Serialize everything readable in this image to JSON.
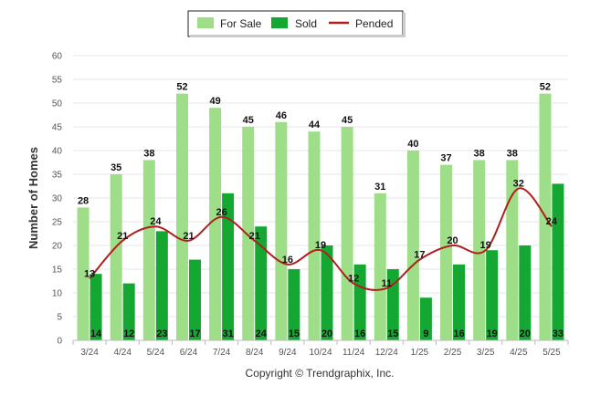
{
  "chart_data": {
    "type": "bar",
    "categories": [
      "3/24",
      "4/24",
      "5/24",
      "6/24",
      "7/24",
      "8/24",
      "9/24",
      "10/24",
      "11/24",
      "12/24",
      "1/25",
      "2/25",
      "3/25",
      "4/25",
      "5/25"
    ],
    "series": [
      {
        "name": "For Sale",
        "kind": "bar",
        "color": "#9EDE88",
        "values": [
          28,
          35,
          38,
          52,
          49,
          45,
          46,
          44,
          45,
          31,
          40,
          37,
          38,
          38,
          52
        ]
      },
      {
        "name": "Sold",
        "kind": "bar",
        "color": "#14A833",
        "values": [
          14,
          12,
          23,
          17,
          31,
          24,
          15,
          20,
          16,
          15,
          9,
          16,
          19,
          20,
          33
        ]
      },
      {
        "name": "Pended",
        "kind": "line",
        "color": "#B01E1E",
        "values": [
          13,
          21,
          24,
          21,
          26,
          21,
          16,
          19,
          12,
          11,
          17,
          20,
          19,
          32,
          24
        ]
      }
    ],
    "ylabel": "Number of Homes",
    "xlabel": "",
    "ylim": [
      0,
      60
    ],
    "yticks": [
      0,
      5,
      10,
      15,
      20,
      25,
      30,
      35,
      40,
      45,
      50,
      55,
      60
    ],
    "grid": true,
    "legend": "top-center",
    "copyright": "Copyright © Trendgraphix, Inc."
  }
}
